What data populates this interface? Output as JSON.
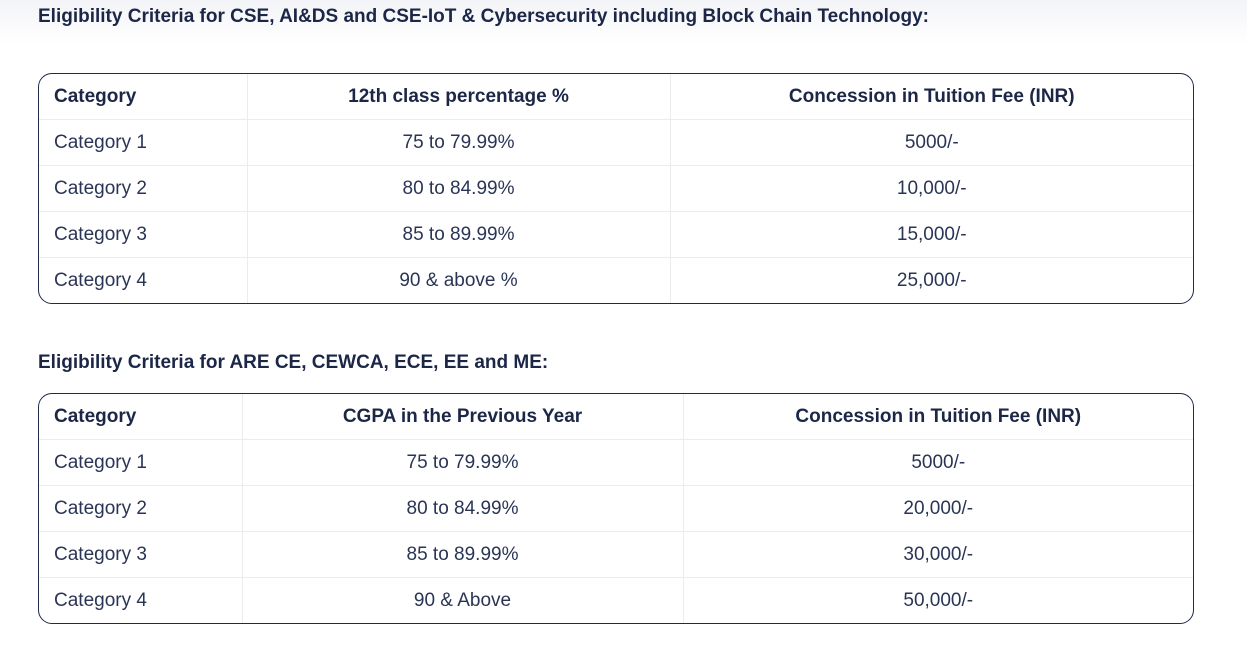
{
  "sections": [
    {
      "title": "Eligibility Criteria for CSE, AI&DS and CSE-IoT & Cybersecurity including Block Chain Technology:",
      "headers": [
        "Category",
        "12th class percentage %",
        "Concession in Tuition Fee (INR)"
      ],
      "rows": [
        [
          "Category 1",
          "75 to 79.99%",
          "5000/-"
        ],
        [
          "Category 2",
          "80 to 84.99%",
          "10,000/-"
        ],
        [
          "Category 3",
          "85 to 89.99%",
          "15,000/-"
        ],
        [
          "Category 4",
          "90 & above %",
          "25,000/-"
        ]
      ]
    },
    {
      "title": "Eligibility Criteria for ARE CE, CEWCA, ECE, EE and ME:",
      "headers": [
        "Category",
        "CGPA in the Previous Year",
        "Concession in Tuition Fee (INR)"
      ],
      "rows": [
        [
          "Category 1",
          "75 to 79.99%",
          "5000/-"
        ],
        [
          "Category 2",
          "80 to 84.99%",
          "20,000/-"
        ],
        [
          "Category 3",
          "85 to 89.99%",
          "30,000/-"
        ],
        [
          "Category 4",
          "90 & Above",
          "50,000/-"
        ]
      ]
    }
  ]
}
